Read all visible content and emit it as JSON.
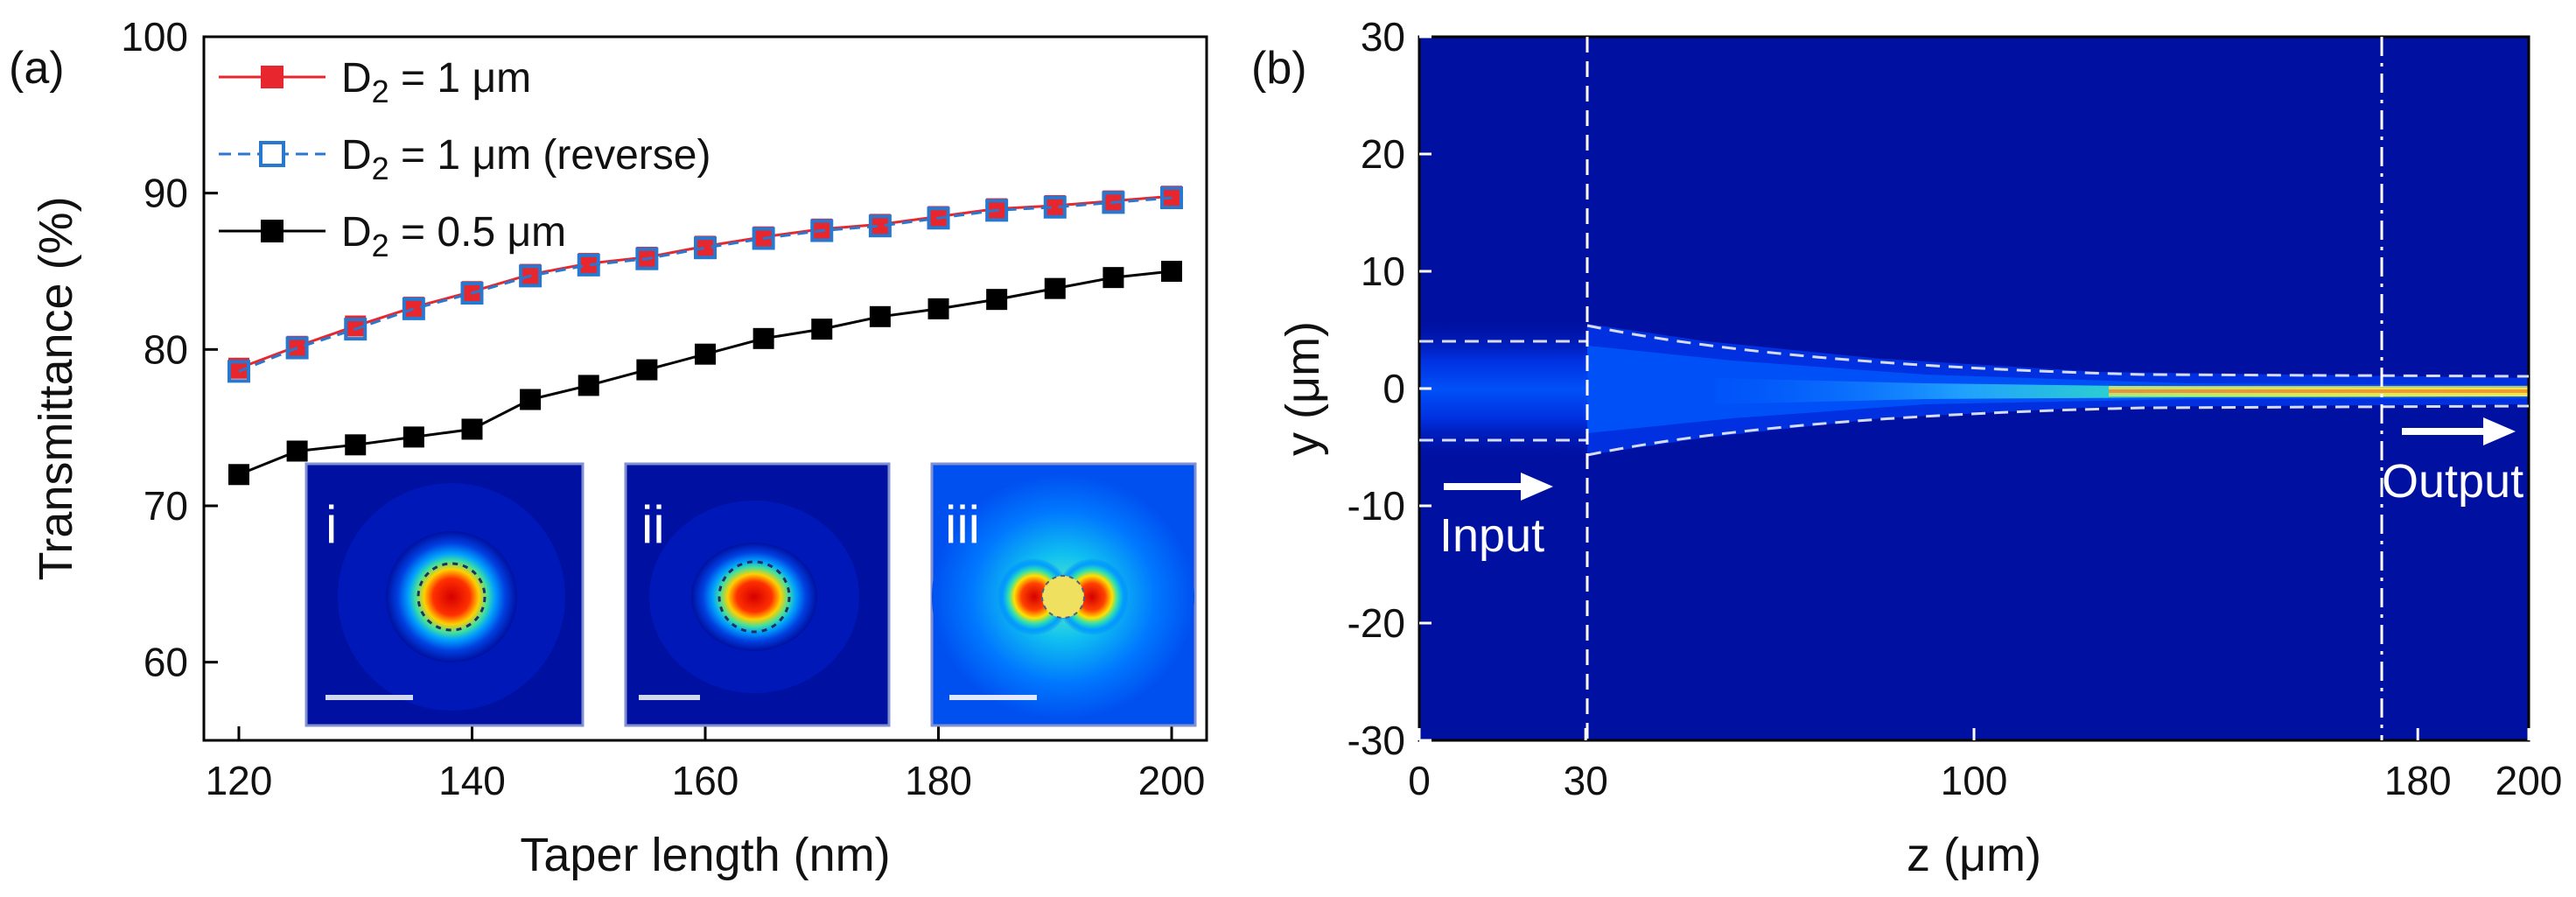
{
  "chart_data": [
    {
      "panel": "(a)",
      "type": "line",
      "xlabel": "Taper length (nm)",
      "ylabel": "Transmittance (%)",
      "xlim": [
        117,
        203
      ],
      "ylim": [
        55,
        100
      ],
      "xticks": [
        120,
        140,
        160,
        180,
        200
      ],
      "yticks": [
        60,
        70,
        80,
        90,
        100
      ],
      "x": [
        120,
        125,
        130,
        135,
        140,
        145,
        150,
        155,
        160,
        165,
        170,
        175,
        180,
        185,
        190,
        195,
        200
      ],
      "series": [
        {
          "name": "D2 = 1 μm",
          "label_main": "D",
          "label_sub": "2",
          "label_rest": " = 1 μm",
          "color": "#e8262d",
          "marker": "filled-square",
          "values": [
            78.8,
            80.2,
            81.5,
            82.7,
            83.7,
            84.8,
            85.5,
            85.9,
            86.6,
            87.2,
            87.7,
            88.0,
            88.5,
            89.0,
            89.2,
            89.5,
            89.8
          ]
        },
        {
          "name": "D2 = 1 μm (reverse)",
          "label_main": "D",
          "label_sub": "2",
          "label_rest": " = 1 μm (reverse)",
          "color": "#2878d0",
          "marker": "open-square",
          "values": [
            78.6,
            80.1,
            81.3,
            82.6,
            83.6,
            84.7,
            85.4,
            85.8,
            86.5,
            87.1,
            87.6,
            87.9,
            88.4,
            88.9,
            89.1,
            89.4,
            89.7
          ]
        },
        {
          "name": "D2 = 0.5 μm",
          "label_main": "D",
          "label_sub": "2",
          "label_rest": " = 0.5 μm",
          "color": "#000000",
          "marker": "filled-square",
          "values": [
            72.0,
            73.5,
            73.9,
            74.4,
            74.9,
            76.8,
            77.7,
            78.7,
            79.7,
            80.7,
            81.3,
            82.1,
            82.6,
            83.2,
            83.9,
            84.6,
            85.0
          ]
        }
      ],
      "insets": [
        "i",
        "ii",
        "iii"
      ]
    },
    {
      "panel": "(b)",
      "type": "heatmap",
      "xlabel": "z (μm)",
      "ylabel": "y (μm)",
      "xlim": [
        0,
        200
      ],
      "ylim": [
        -30,
        30
      ],
      "xticks": [
        0,
        30,
        100,
        180,
        200
      ],
      "yticks": [
        30,
        20,
        10,
        0,
        -10,
        -20,
        -30
      ],
      "input_z": 30,
      "output_z": 180,
      "input_label": "Input",
      "output_label": "Output"
    }
  ]
}
